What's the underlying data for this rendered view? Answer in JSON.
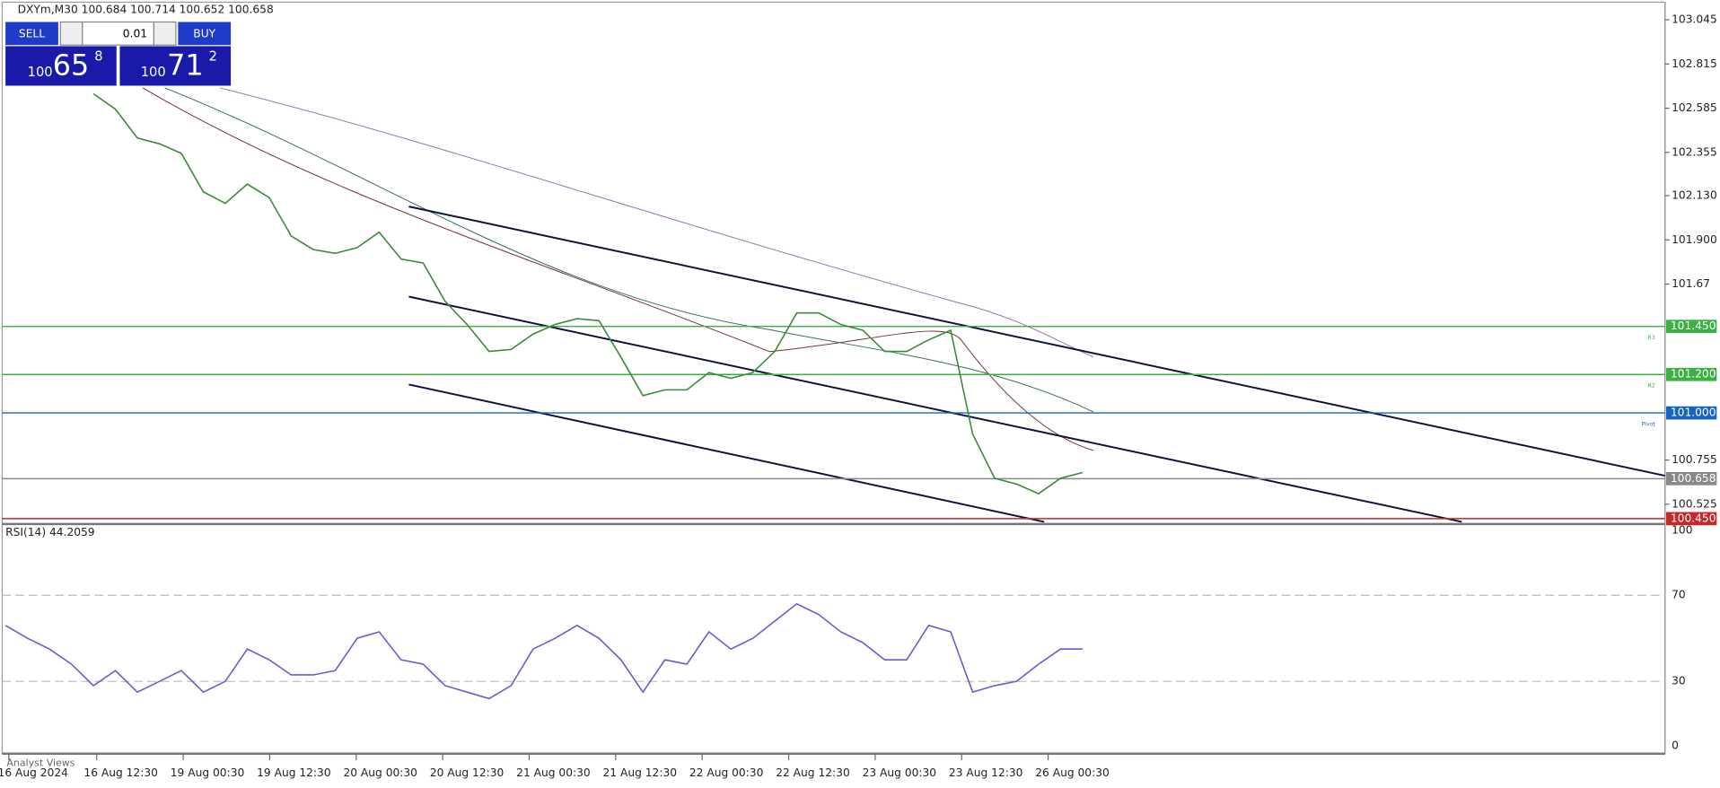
{
  "header": {
    "symbol_line": "DXYm,M30  100.684 100.714 100.652 100.658"
  },
  "trade_panel": {
    "sell": "SELL",
    "buy": "BUY",
    "lot": "0.01",
    "bid_big": "100",
    "bid_main": "65",
    "bid_small": "8",
    "ask_big": "100",
    "ask_main": "71",
    "ask_small": "2"
  },
  "chart_data": [
    {
      "type": "line",
      "name": "price",
      "ylim": [
        100.43,
        103.15
      ],
      "yticks": [
        103.045,
        102.815,
        102.585,
        102.355,
        {
          "value": 102.13,
          "label": "102.130"
        },
        {
          "value": 101.9,
          "label": "101.900"
        },
        101.67,
        100.755,
        100.525
      ],
      "levels": [
        {
          "value": 101.45,
          "label": "101.450",
          "tag": "R3",
          "color": "#3cb043"
        },
        {
          "value": 101.2,
          "label": "101.200",
          "tag": "R2",
          "color": "#3cb043"
        },
        {
          "value": 101.0,
          "label": "101.000",
          "tag": "Pivot",
          "color": "#1565c0"
        },
        {
          "value": 100.658,
          "label": "100.658",
          "color": "#888888"
        },
        {
          "value": 100.45,
          "label": "100.450",
          "color": "#c62828"
        }
      ],
      "series": [
        {
          "name": "DXYm",
          "color": "#3a8a3a",
          "values": [
            102.66,
            102.58,
            102.43,
            102.4,
            102.35,
            102.15,
            102.09,
            102.19,
            102.12,
            101.92,
            101.85,
            101.83,
            101.86,
            101.94,
            101.8,
            101.78,
            101.58,
            101.46,
            101.32,
            101.33,
            101.41,
            101.46,
            101.49,
            101.48,
            101.29,
            101.09,
            101.12,
            101.12,
            101.21,
            101.18,
            101.21,
            101.32,
            101.52,
            101.52,
            101.46,
            101.43,
            101.32,
            101.32,
            101.38,
            101.43,
            100.89,
            100.66,
            100.63,
            100.58,
            100.66,
            100.69
          ]
        }
      ],
      "x_labels": [
        "16 Aug 2024",
        "16 Aug 12:30",
        "19 Aug 00:30",
        "19 Aug 12:30",
        "20 Aug 00:30",
        "20 Aug 12:30",
        "21 Aug 00:30",
        "21 Aug 12:30",
        "22 Aug 00:30",
        "22 Aug 12:30",
        "23 Aug 00:30",
        "23 Aug 12:30",
        "26 Aug 00:30"
      ]
    },
    {
      "type": "line",
      "name": "rsi",
      "title": "RSI(14) 44.2059",
      "ylim": [
        0,
        100
      ],
      "yticks": [
        100,
        70,
        30,
        0
      ],
      "series": [
        {
          "name": "RSI(14)",
          "color": "#6a5acd",
          "values": [
            56,
            50,
            45,
            38,
            28,
            35,
            25,
            30,
            35,
            25,
            30,
            45,
            40,
            33,
            33,
            35,
            50,
            53,
            40,
            38,
            28,
            25,
            22,
            28,
            45,
            50,
            56,
            50,
            40,
            25,
            40,
            38,
            53,
            45,
            50,
            58,
            66,
            61,
            53,
            48,
            40,
            40,
            56,
            53,
            25,
            28,
            30,
            38,
            45,
            45
          ]
        }
      ]
    }
  ],
  "footer": {
    "tab": "Analyst Views"
  }
}
